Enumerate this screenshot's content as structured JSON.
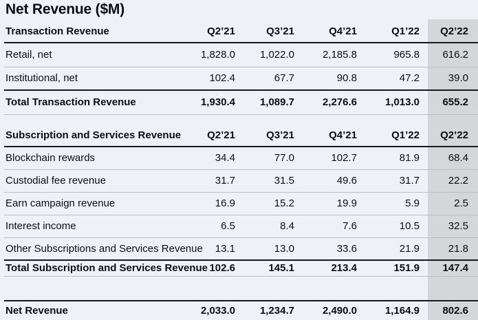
{
  "chart_data": {
    "type": "table",
    "title": "Net Revenue ($M)",
    "columns": [
      "Q2’21",
      "Q3’21",
      "Q4’21",
      "Q1’22",
      "Q2’22"
    ],
    "highlighted_column": "Q2’22",
    "sections": [
      {
        "header": "Transaction Revenue",
        "rows": [
          {
            "label": "Retail, net",
            "values": [
              "1,828.0",
              "1,022.0",
              "2,185.8",
              "965.8",
              "616.2"
            ],
            "total": false
          },
          {
            "label": "Institutional, net",
            "values": [
              "102.4",
              "67.7",
              "90.8",
              "47.2",
              "39.0"
            ],
            "total": false
          },
          {
            "label": "Total Transaction Revenue",
            "values": [
              "1,930.4",
              "1,089.7",
              "2,276.6",
              "1,013.0",
              "655.2"
            ],
            "total": true
          }
        ]
      },
      {
        "header": "Subscription and Services Revenue",
        "rows": [
          {
            "label": "Blockchain rewards",
            "values": [
              "34.4",
              "77.0",
              "102.7",
              "81.9",
              "68.4"
            ],
            "total": false
          },
          {
            "label": "Custodial fee revenue",
            "values": [
              "31.7",
              "31.5",
              "49.6",
              "31.7",
              "22.2"
            ],
            "total": false
          },
          {
            "label": "Earn campaign revenue",
            "values": [
              "16.9",
              "15.2",
              "19.9",
              "5.9",
              "2.5"
            ],
            "total": false
          },
          {
            "label": "Interest income",
            "values": [
              "6.5",
              "8.4",
              "7.6",
              "10.5",
              "32.5"
            ],
            "total": false
          },
          {
            "label": "Other Subscriptions and Services Revenue",
            "values": [
              "13.1",
              "13.0",
              "33.6",
              "21.9",
              "21.8"
            ],
            "total": false
          },
          {
            "label": "Total Subscription and Services Revenue",
            "values": [
              "102.6",
              "145.1",
              "213.4",
              "151.9",
              "147.4"
            ],
            "total": true
          }
        ]
      }
    ],
    "footer": {
      "label": "Net Revenue",
      "values": [
        "2,033.0",
        "1,234.7",
        "2,490.0",
        "1,164.9",
        "802.6"
      ]
    }
  },
  "colors": {
    "background": "#eef1f5",
    "highlight_column_bg": "#d4d7da",
    "text": "#0c0e12",
    "rule_light": "#bcc0c4",
    "rule_dark": "#17191d"
  }
}
